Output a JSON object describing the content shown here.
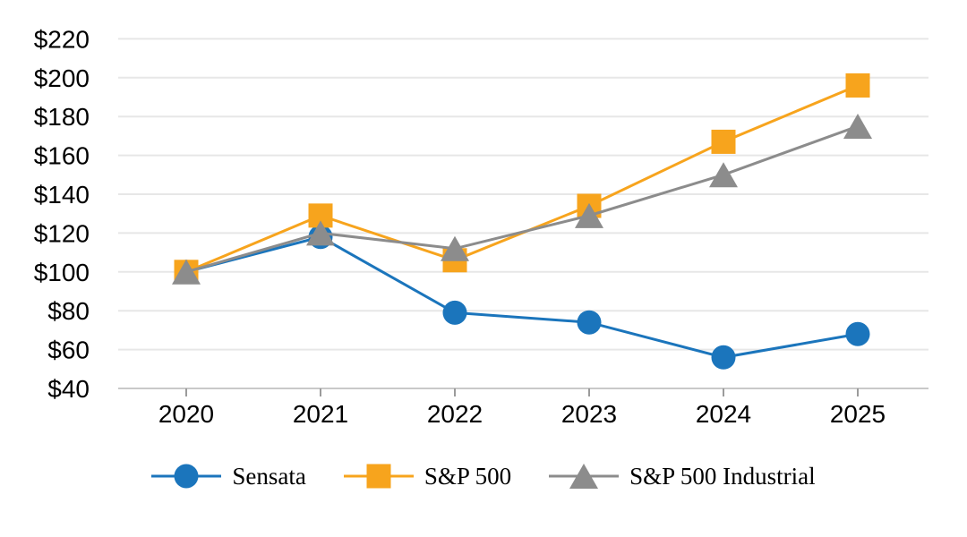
{
  "chart_data": {
    "type": "line",
    "title": "",
    "x_categories": [
      "2020",
      "2021",
      "2022",
      "2023",
      "2024",
      "2025"
    ],
    "y_axis": {
      "min": 40,
      "max": 220,
      "step": 20,
      "tick_prefix": "$",
      "tick_labels": [
        "$40",
        "$60",
        "$80",
        "$100",
        "$120",
        "$140",
        "$160",
        "$180",
        "$200",
        "$220"
      ]
    },
    "series": [
      {
        "name": "Sensata",
        "marker": "circle",
        "color": "#1B75BC",
        "values": [
          100,
          118,
          79,
          74,
          56,
          68
        ]
      },
      {
        "name": "S&P 500",
        "marker": "square",
        "color": "#F7A41D",
        "values": [
          100,
          129,
          106,
          134,
          167,
          196
        ]
      },
      {
        "name": "S&P 500 Industrial",
        "marker": "triangle",
        "color": "#8C8C8C",
        "values": [
          100,
          120,
          112,
          129,
          150,
          175
        ]
      }
    ],
    "grid": true,
    "gridline_color": "#E7E7E7",
    "axis_line_color": "#C9C9C9",
    "tick_mark_color": "#9B9B9B",
    "legend_position": "bottom"
  }
}
